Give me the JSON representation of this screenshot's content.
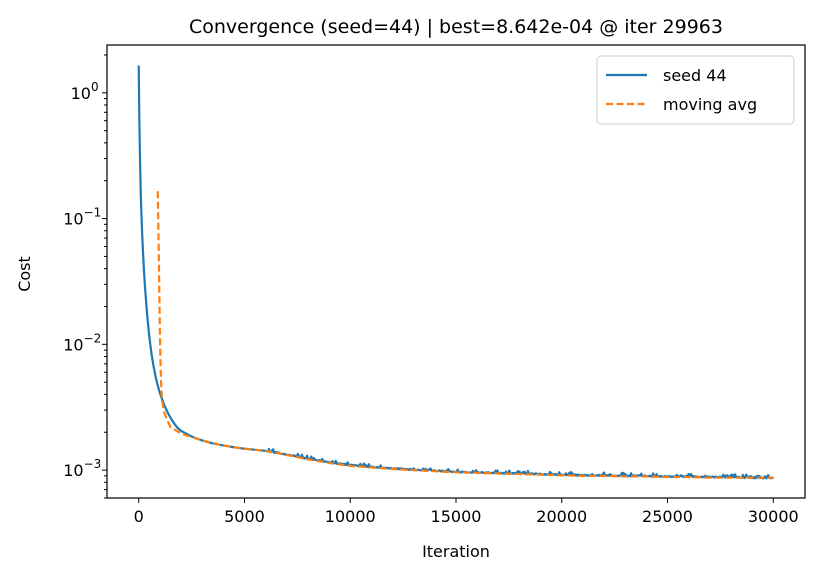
{
  "chart_data": {
    "type": "line",
    "title": "Convergence (seed=44) | best=8.642e-04 @ iter 29963",
    "xlabel": "Iteration",
    "ylabel": "Cost",
    "x_scale": "linear",
    "y_scale": "log",
    "xlim": [
      -1500,
      31500
    ],
    "ylim": [
      0.0006,
      2.4
    ],
    "x_ticks": [
      0,
      5000,
      10000,
      15000,
      20000,
      25000,
      30000
    ],
    "x_tick_labels": [
      "0",
      "5000",
      "10000",
      "15000",
      "20000",
      "25000",
      "30000"
    ],
    "y_ticks": [
      0.001,
      0.01,
      0.1,
      1
    ],
    "y_tick_labels": [
      {
        "base": "10",
        "exp": "−3"
      },
      {
        "base": "10",
        "exp": "−2"
      },
      {
        "base": "10",
        "exp": "−1"
      },
      {
        "base": "10",
        "exp": "0"
      }
    ],
    "grid": false,
    "legend_position": "top-right",
    "series": [
      {
        "name": "seed 44",
        "color": "#1f77b4",
        "style": "solid",
        "x": [
          0,
          30,
          60,
          100,
          150,
          200,
          250,
          300,
          400,
          500,
          600,
          700,
          800,
          900,
          1000,
          1200,
          1400,
          1600,
          1800,
          2000,
          2500,
          3000,
          3500,
          4000,
          4500,
          5000,
          5500,
          6000,
          6500,
          7000,
          7500,
          8000,
          8500,
          9000,
          9500,
          10000,
          11000,
          12000,
          13000,
          14000,
          15000,
          16000,
          17000,
          18000,
          19000,
          20000,
          21000,
          22000,
          23000,
          24000,
          25000,
          26000,
          27000,
          28000,
          29000,
          30000
        ],
        "y": [
          1.65,
          0.6,
          0.3,
          0.15,
          0.085,
          0.055,
          0.038,
          0.028,
          0.017,
          0.0115,
          0.0085,
          0.0067,
          0.0055,
          0.0047,
          0.0041,
          0.0033,
          0.0028,
          0.00245,
          0.0022,
          0.00205,
          0.00185,
          0.00172,
          0.00163,
          0.00157,
          0.00152,
          0.00148,
          0.00145,
          0.00142,
          0.00138,
          0.00133,
          0.00128,
          0.00123,
          0.00119,
          0.00115,
          0.00112,
          0.0011,
          0.00106,
          0.00103,
          0.00101,
          0.00099,
          0.00097,
          0.00096,
          0.00095,
          0.00094,
          0.00093,
          0.00092,
          0.00091,
          0.00091,
          0.0009,
          0.0009,
          0.00089,
          0.00089,
          0.00088,
          0.00088,
          0.00087,
          0.000864
        ],
        "noise_start": 6000,
        "noise_amplitude": 0.035
      },
      {
        "name": "moving avg",
        "color": "#ff7f0e",
        "style": "dashed",
        "x": [
          900,
          950,
          1000,
          1050,
          1100,
          1200,
          1300,
          1400,
          1500,
          1700,
          2000,
          2500,
          3000,
          3500,
          4000,
          4500,
          5000,
          5500,
          6000,
          6500,
          7000,
          7500,
          8000,
          8500,
          9000,
          9500,
          10000,
          11000,
          12000,
          13000,
          14000,
          15000,
          16000,
          17000,
          18000,
          19000,
          20000,
          21000,
          22000,
          23000,
          24000,
          25000,
          26000,
          27000,
          28000,
          29000,
          30000
        ],
        "y": [
          0.165,
          0.05,
          0.012,
          0.0052,
          0.0036,
          0.0029,
          0.0026,
          0.0024,
          0.0022,
          0.0021,
          0.00195,
          0.00183,
          0.00172,
          0.00164,
          0.00157,
          0.00152,
          0.00148,
          0.00145,
          0.00142,
          0.00137,
          0.00132,
          0.00127,
          0.00122,
          0.00118,
          0.00114,
          0.00111,
          0.00108,
          0.00105,
          0.00102,
          0.001,
          0.00098,
          0.00096,
          0.00095,
          0.00094,
          0.00093,
          0.00092,
          0.00091,
          0.0009,
          0.0009,
          0.00089,
          0.00089,
          0.00088,
          0.00088,
          0.00087,
          0.00087,
          0.00087,
          0.00087
        ]
      }
    ]
  }
}
